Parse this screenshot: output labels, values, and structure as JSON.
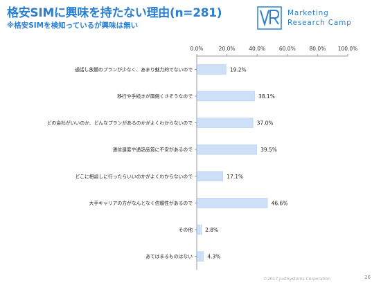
{
  "header": {
    "title": "格安SIMに興味を持たない理由(n=281)",
    "subtitle": "※格安SIMを検知っているが興味は無い"
  },
  "logo": {
    "line1": "Marketing",
    "line2": "Research Camp"
  },
  "footer": {
    "copyright": "©2017 JustSystems Corporation",
    "page_number": "26"
  },
  "chart_data": {
    "type": "bar",
    "orientation": "horizontal",
    "categories": [
      "通話し放題のプランが少なく、あまり魅力的でないので",
      "移行や手続きが面倒くさそうなので",
      "どの会社がいいのか、どんなプランがあるのかがよくわからないので",
      "通信速度や通話品質に不安があるので",
      "どこに相談しに行ったらいいのかがよくわからないので",
      "大手キャリアの方がなんとなく信頼性があるので",
      "その他",
      "あてはまるものはない"
    ],
    "values": [
      19.2,
      38.1,
      37.0,
      39.5,
      17.1,
      46.6,
      2.8,
      4.3
    ],
    "value_labels": [
      "19.2%",
      "38.1%",
      "37.0%",
      "39.5%",
      "17.1%",
      "46.6%",
      "2.8%",
      "4.3%"
    ],
    "ticks": [
      0,
      20,
      40,
      60,
      80,
      100
    ],
    "tick_labels": [
      "0.0%",
      "20.0%",
      "40.0%",
      "60.0%",
      "80.0%",
      "100.0%"
    ],
    "xlim": [
      0,
      100
    ],
    "axis_position": "top",
    "grid": false,
    "bar_color": "#cde0f7",
    "bar_border_color": "#b6cfee",
    "axis_color": "#999999",
    "title_color": "#2b7fd0"
  }
}
